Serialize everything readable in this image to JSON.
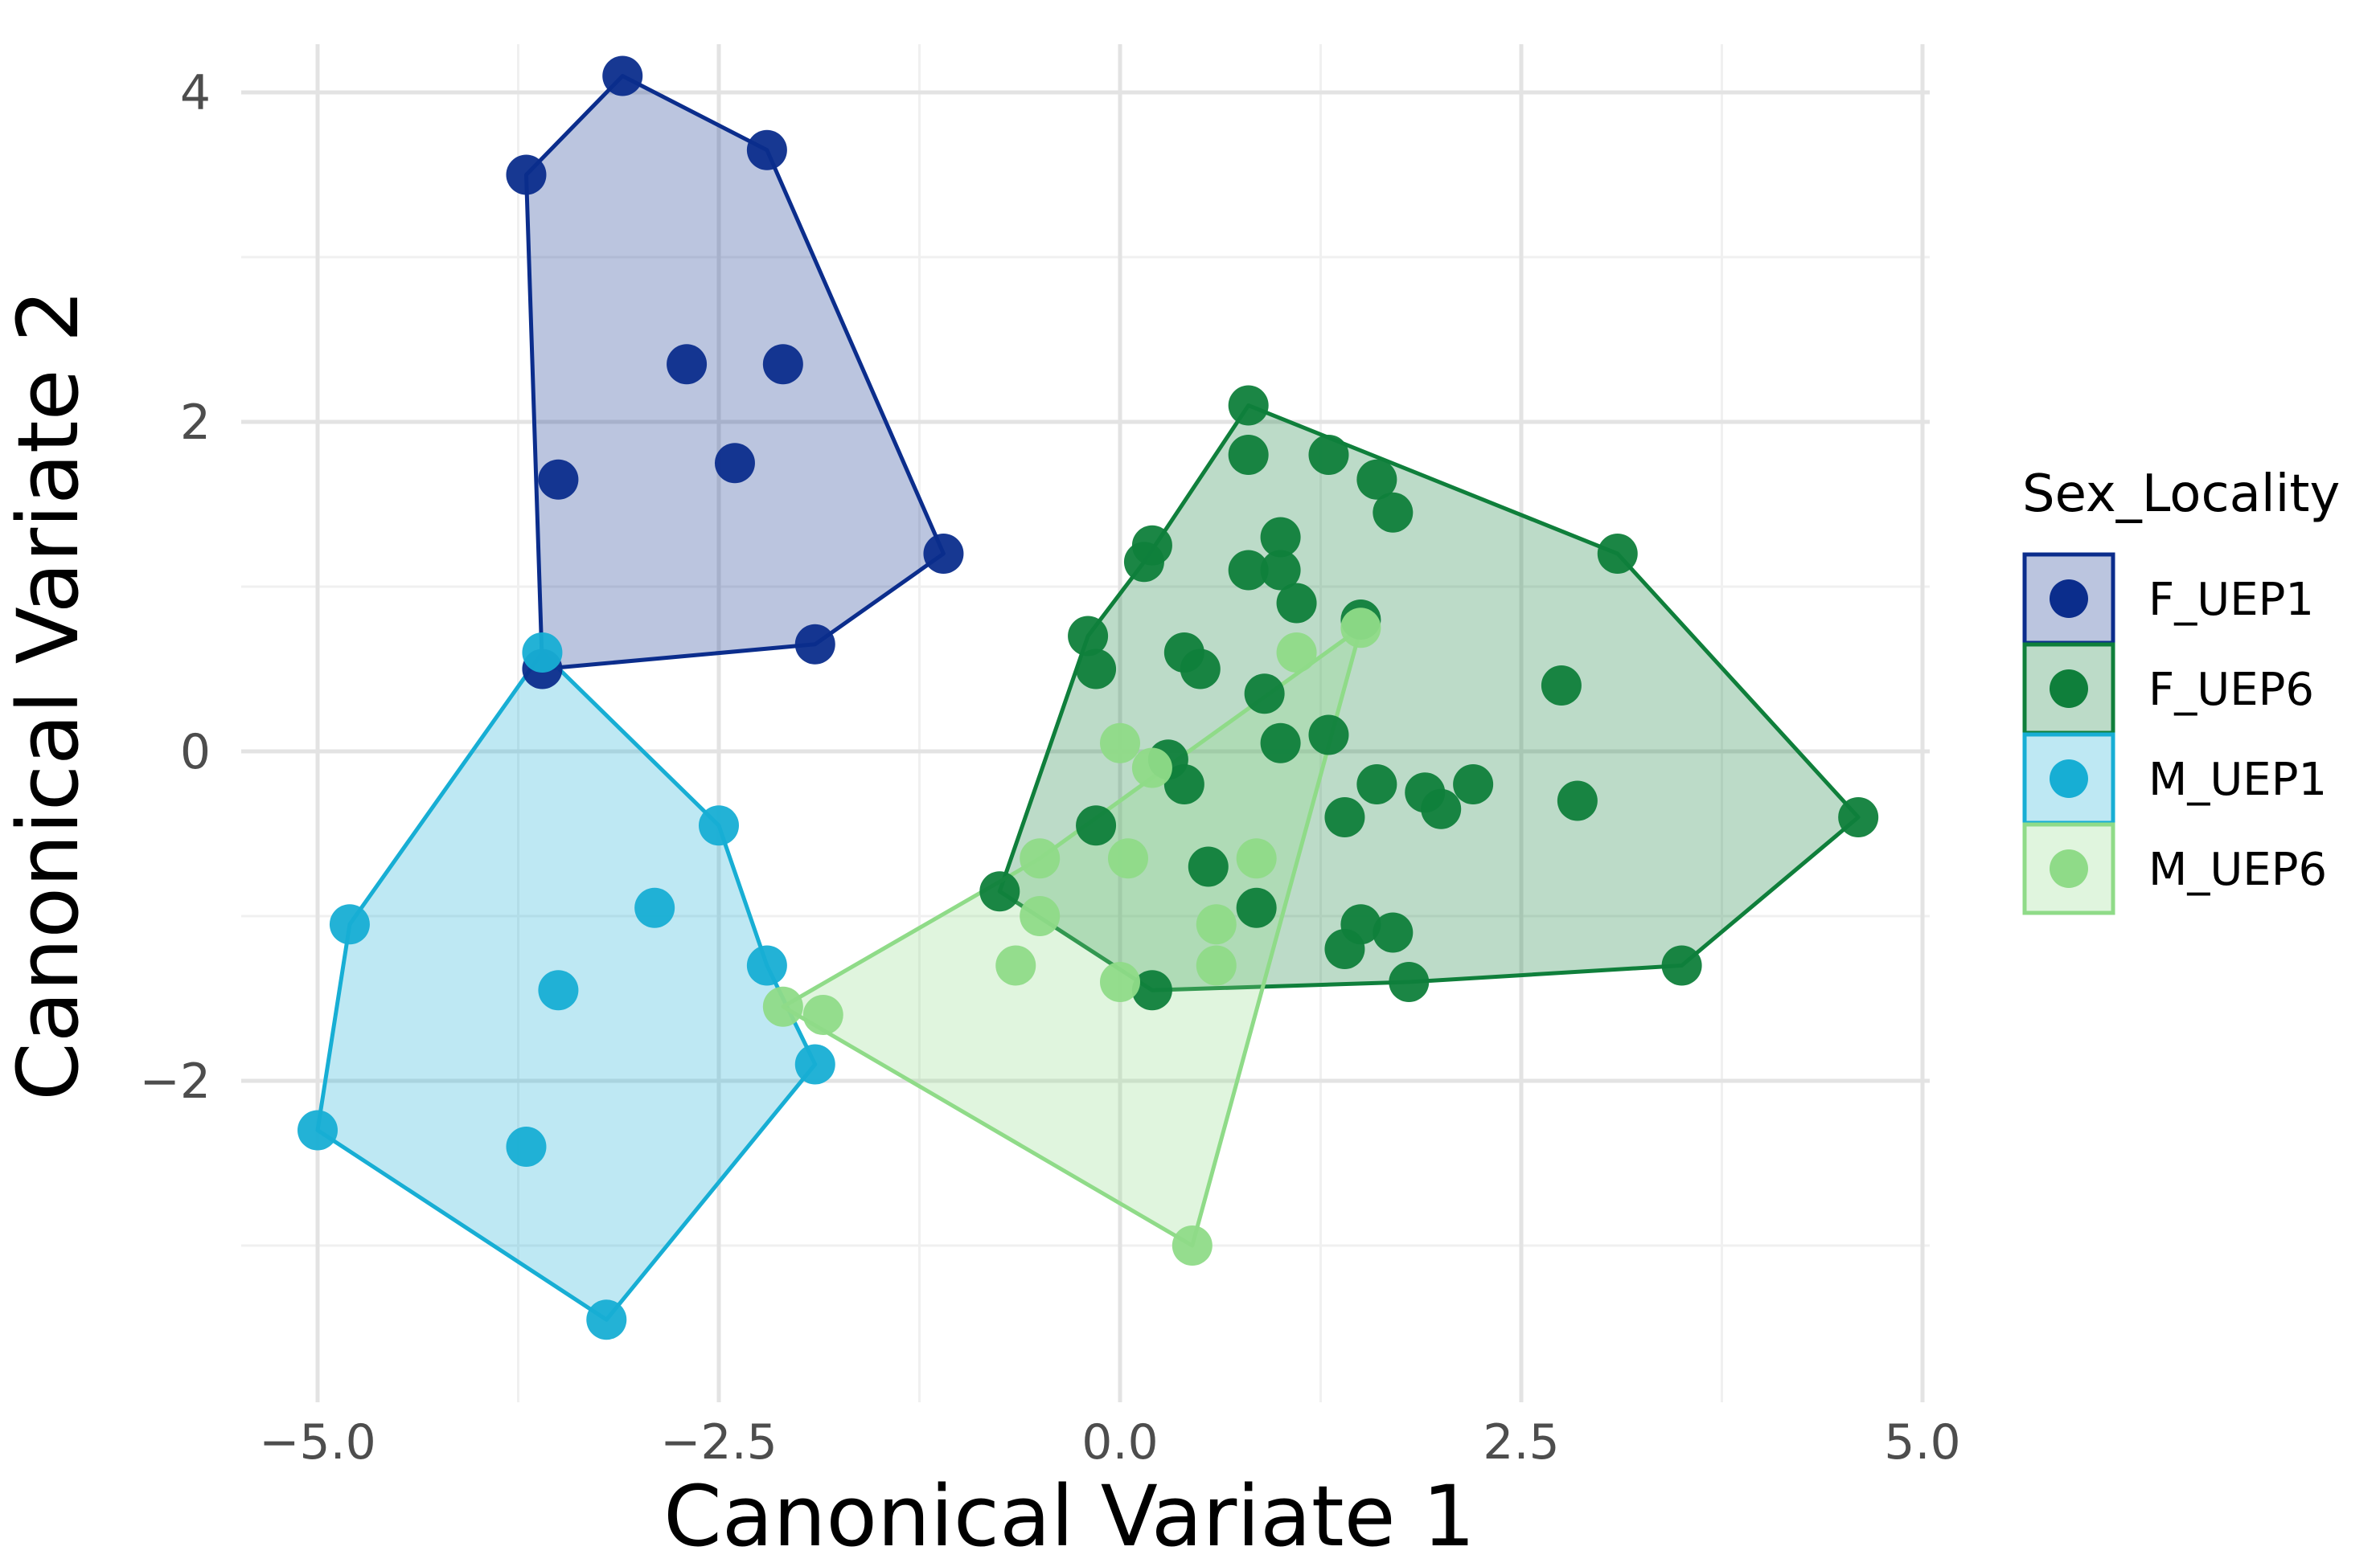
{
  "chart_data": {
    "type": "scatter",
    "title": "",
    "xlabel": "Canonical Variate 1",
    "ylabel": "Canonical Variate 2",
    "xlim": [
      -5.4,
      5.0
    ],
    "ylim": [
      -3.85,
      4.25
    ],
    "x_ticks": [
      -5.0,
      -2.5,
      0.0,
      2.5,
      5.0
    ],
    "x_tick_labels": [
      "−5.0",
      "−2.5",
      "0.0",
      "2.5",
      "5.0"
    ],
    "y_ticks": [
      -2,
      0,
      2,
      4
    ],
    "y_tick_labels": [
      "−2",
      "0",
      "2",
      "4"
    ],
    "grid": true,
    "convex_hulls": true,
    "legend": {
      "title": "Sex_Locality",
      "position": "right"
    },
    "series": [
      {
        "name": "F_UEP1",
        "color": "#0b2d8c",
        "points": [
          [
            -3.1,
            4.1
          ],
          [
            -3.7,
            3.5
          ],
          [
            -2.2,
            3.65
          ],
          [
            -2.7,
            2.35
          ],
          [
            -2.1,
            2.35
          ],
          [
            -3.5,
            1.65
          ],
          [
            -2.4,
            1.75
          ],
          [
            -1.1,
            1.2
          ],
          [
            -1.9,
            0.65
          ],
          [
            -3.6,
            0.5
          ]
        ],
        "hull": [
          [
            -3.1,
            4.1
          ],
          [
            -2.2,
            3.65
          ],
          [
            -1.1,
            1.2
          ],
          [
            -1.9,
            0.65
          ],
          [
            -3.6,
            0.5
          ],
          [
            -3.7,
            3.5
          ]
        ]
      },
      {
        "name": "F_UEP6",
        "color": "#0f7f3b",
        "points": [
          [
            0.8,
            2.1
          ],
          [
            0.8,
            1.8
          ],
          [
            1.3,
            1.8
          ],
          [
            1.6,
            1.65
          ],
          [
            1.7,
            1.45
          ],
          [
            0.2,
            1.25
          ],
          [
            0.15,
            1.15
          ],
          [
            1.0,
            1.3
          ],
          [
            0.8,
            1.1
          ],
          [
            1.0,
            1.1
          ],
          [
            1.1,
            0.9
          ],
          [
            3.1,
            1.2
          ],
          [
            1.5,
            0.8
          ],
          [
            -0.2,
            0.7
          ],
          [
            -0.15,
            0.5
          ],
          [
            0.4,
            0.6
          ],
          [
            0.5,
            0.5
          ],
          [
            0.9,
            0.35
          ],
          [
            2.75,
            0.4
          ],
          [
            1.3,
            0.1
          ],
          [
            1.0,
            0.05
          ],
          [
            0.3,
            -0.05
          ],
          [
            0.4,
            -0.2
          ],
          [
            1.6,
            -0.2
          ],
          [
            1.9,
            -0.25
          ],
          [
            2.0,
            -0.35
          ],
          [
            2.2,
            -0.2
          ],
          [
            2.85,
            -0.3
          ],
          [
            1.4,
            -0.4
          ],
          [
            4.6,
            -0.4
          ],
          [
            -0.15,
            -0.45
          ],
          [
            0.55,
            -0.7
          ],
          [
            -0.75,
            -0.85
          ],
          [
            0.85,
            -0.95
          ],
          [
            1.5,
            -1.05
          ],
          [
            1.7,
            -1.1
          ],
          [
            1.4,
            -1.2
          ],
          [
            3.5,
            -1.3
          ],
          [
            0.2,
            -1.45
          ],
          [
            1.8,
            -1.4
          ]
        ],
        "hull": [
          [
            0.8,
            2.1
          ],
          [
            3.1,
            1.2
          ],
          [
            4.6,
            -0.4
          ],
          [
            3.5,
            -1.3
          ],
          [
            1.8,
            -1.4
          ],
          [
            0.2,
            -1.45
          ],
          [
            -0.75,
            -0.85
          ],
          [
            -0.2,
            0.7
          ],
          [
            0.15,
            1.15
          ]
        ]
      },
      {
        "name": "M_UEP1",
        "color": "#17aed4",
        "points": [
          [
            -3.6,
            0.6
          ],
          [
            -2.5,
            -0.45
          ],
          [
            -4.8,
            -1.05
          ],
          [
            -2.9,
            -0.95
          ],
          [
            -2.2,
            -1.3
          ],
          [
            -3.5,
            -1.45
          ],
          [
            -1.9,
            -1.9
          ],
          [
            -3.7,
            -2.4
          ],
          [
            -5.0,
            -2.3
          ],
          [
            -3.2,
            -3.45
          ]
        ],
        "hull": [
          [
            -3.6,
            0.6
          ],
          [
            -2.5,
            -0.45
          ],
          [
            -2.2,
            -1.3
          ],
          [
            -1.9,
            -1.9
          ],
          [
            -3.2,
            -3.45
          ],
          [
            -5.0,
            -2.3
          ],
          [
            -4.8,
            -1.05
          ]
        ]
      },
      {
        "name": "M_UEP6",
        "color": "#8fdb88",
        "points": [
          [
            1.5,
            0.75
          ],
          [
            1.1,
            0.6
          ],
          [
            0.0,
            0.05
          ],
          [
            0.2,
            -0.1
          ],
          [
            -0.5,
            -0.65
          ],
          [
            0.05,
            -0.65
          ],
          [
            0.85,
            -0.65
          ],
          [
            -0.5,
            -1.0
          ],
          [
            0.6,
            -1.05
          ],
          [
            -0.65,
            -1.3
          ],
          [
            0.6,
            -1.3
          ],
          [
            0.0,
            -1.4
          ],
          [
            -2.1,
            -1.55
          ],
          [
            -1.85,
            -1.6
          ],
          [
            0.45,
            -3.0
          ]
        ],
        "hull": [
          [
            1.5,
            0.75
          ],
          [
            0.45,
            -3.0
          ],
          [
            -2.1,
            -1.55
          ],
          [
            -0.5,
            -0.65
          ]
        ]
      }
    ]
  }
}
